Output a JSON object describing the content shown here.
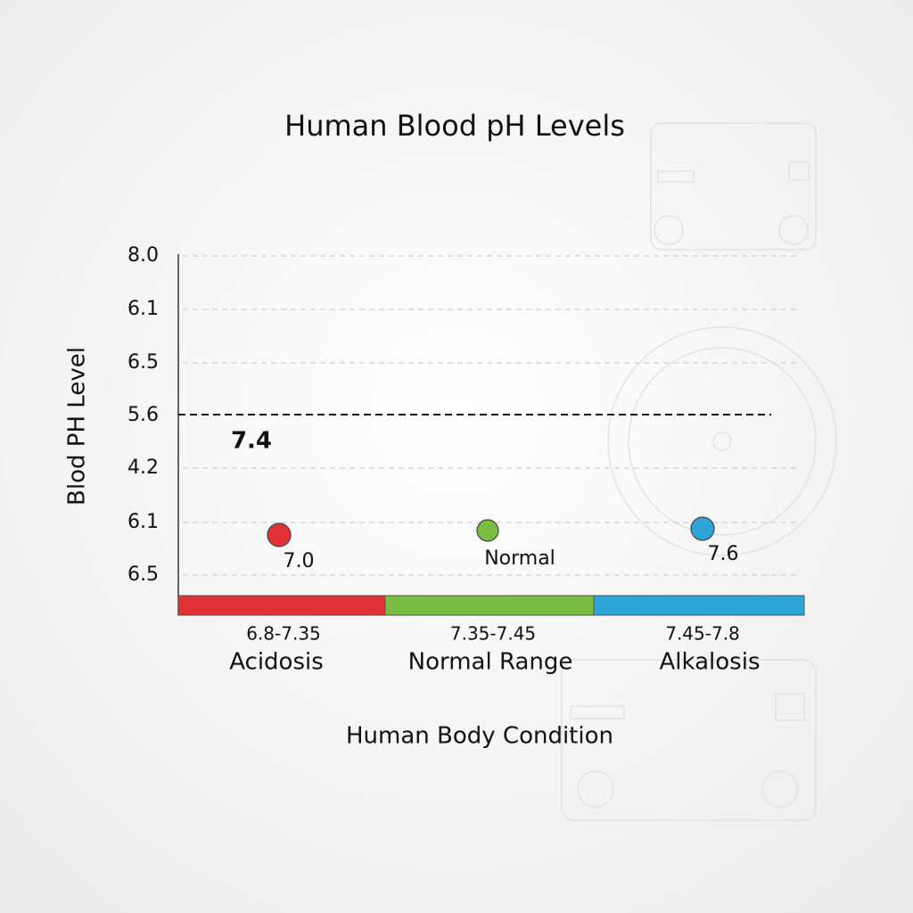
{
  "chart_data": {
    "type": "scatter",
    "title": "Human Blood pH Levels",
    "y_label": "Blod PH Level",
    "x_label": "Human Body Condition",
    "y_categories": [
      "8.0",
      "6.1",
      "6.5",
      "5.6",
      "4.2",
      "6.1",
      "6.5"
    ],
    "reference_line": {
      "label": "7.4",
      "color": "#111111"
    },
    "points": [
      {
        "label": "7.0",
        "color": "#e03236"
      },
      {
        "label": "Normal",
        "color": "#7bbd43"
      },
      {
        "label": "7.6",
        "color": "#2ea3d8"
      }
    ],
    "bands": [
      {
        "range": "6.8-7.35",
        "name": "Acidosis",
        "color": "#e03236"
      },
      {
        "range": "7.35-7.45",
        "name": "Normal Range",
        "color": "#7bbd43"
      },
      {
        "range": "7.45-7.8",
        "name": "Alkalosis",
        "color": "#2ea3d8"
      }
    ],
    "grid": true
  }
}
